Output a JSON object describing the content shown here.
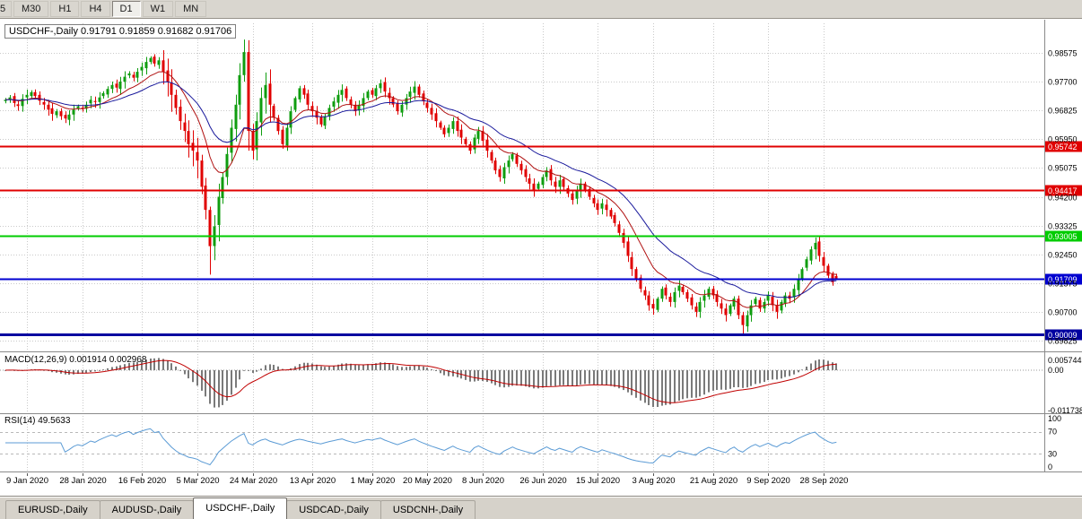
{
  "toolbar": {
    "items": [
      {
        "label": "5",
        "active": false
      },
      {
        "label": "M30",
        "active": false
      },
      {
        "label": "H1",
        "active": false
      },
      {
        "label": "H4",
        "active": false
      },
      {
        "label": "D1",
        "active": true
      },
      {
        "label": "W1",
        "active": false
      },
      {
        "label": "MN",
        "active": false
      }
    ]
  },
  "chart_title": "USDCHF-,Daily  0.91791 0.91859 0.91682 0.91706",
  "chart_data": {
    "type": "candlestick",
    "symbol": "USDCHF-",
    "timeframe": "Daily",
    "ohlc": {
      "open": "0.91791",
      "high": "0.91859",
      "low": "0.91682",
      "close": "0.91706"
    },
    "colors": {
      "up": "#0f9d0f",
      "down": "#e00000",
      "grid": "#c9c9c9",
      "ma_fast": "#b01010",
      "ma_slow": "#1a1a9c",
      "macd_hist": "#7a7a7a",
      "macd_signal": "#c00000",
      "rsi_line": "#5b9bd5"
    },
    "y_axis_labels": [
      "0.98575",
      "0.97700",
      "0.96825",
      "0.95950",
      "0.95075",
      "0.94200",
      "0.93325",
      "0.92450",
      "0.91575",
      "0.90700",
      "0.89825"
    ],
    "x_tick_labels": [
      "9 Jan 2020",
      "28 Jan 2020",
      "16 Feb 2020",
      "5 Mar 2020",
      "24 Mar 2020",
      "13 Apr 2020",
      "1 May 2020",
      "20 May 2020",
      "8 Jun 2020",
      "26 Jun 2020",
      "15 Jul 2020",
      "3 Aug 2020",
      "21 Aug 2020",
      "9 Sep 2020",
      "28 Sep 2020"
    ],
    "x_tick_bars": [
      5,
      18,
      32,
      45,
      58,
      72,
      86,
      99,
      112,
      126,
      139,
      152,
      166,
      179,
      192
    ],
    "hlines": [
      {
        "value": 0.95742,
        "label": "0.95742",
        "color": "#e00000",
        "width": 2
      },
      {
        "value": 0.94417,
        "label": "0.94417",
        "color": "#e00000",
        "width": 2
      },
      {
        "value": 0.93005,
        "label": "0.93005",
        "color": "#00cc00",
        "width": 2
      },
      {
        "value": 0.91709,
        "label": "0.91709",
        "color": "#0000d0",
        "width": 2
      },
      {
        "value": 0.90009,
        "label": "0.90009",
        "color": "#0000a0",
        "width": 3
      }
    ],
    "moving_averages": [
      {
        "period": 12,
        "color": "#b01010"
      },
      {
        "period": 26,
        "color": "#1a1a9c"
      }
    ],
    "candles": {
      "wick": 0.0015,
      "vol_zone": [
        37,
        62
      ],
      "vol_mult": 2.6,
      "closes": [
        0.9715,
        0.9722,
        0.9705,
        0.9696,
        0.9718,
        0.973,
        0.9738,
        0.9726,
        0.9712,
        0.97,
        0.9685,
        0.9672,
        0.968,
        0.9665,
        0.9658,
        0.967,
        0.9685,
        0.9695,
        0.9688,
        0.97,
        0.9715,
        0.9708,
        0.9722,
        0.9735,
        0.9748,
        0.976,
        0.9752,
        0.977,
        0.9785,
        0.9795,
        0.9782,
        0.98,
        0.9815,
        0.983,
        0.9842,
        0.9825,
        0.9835,
        0.98,
        0.977,
        0.973,
        0.969,
        0.965,
        0.962,
        0.958,
        0.956,
        0.953,
        0.945,
        0.938,
        0.927,
        0.933,
        0.942,
        0.948,
        0.955,
        0.963,
        0.97,
        0.979,
        0.986,
        0.962,
        0.956,
        0.965,
        0.972,
        0.976,
        0.97,
        0.966,
        0.962,
        0.958,
        0.963,
        0.968,
        0.972,
        0.975,
        0.973,
        0.97,
        0.968,
        0.966,
        0.964,
        0.9665,
        0.969,
        0.971,
        0.973,
        0.9745,
        0.972,
        0.97,
        0.968,
        0.97,
        0.972,
        0.974,
        0.973,
        0.975,
        0.9765,
        0.974,
        0.972,
        0.97,
        0.968,
        0.97,
        0.972,
        0.974,
        0.9755,
        0.973,
        0.971,
        0.969,
        0.967,
        0.965,
        0.963,
        0.961,
        0.963,
        0.965,
        0.962,
        0.96,
        0.958,
        0.956,
        0.96,
        0.962,
        0.959,
        0.956,
        0.953,
        0.95,
        0.948,
        0.951,
        0.953,
        0.955,
        0.952,
        0.95,
        0.948,
        0.946,
        0.944,
        0.946,
        0.948,
        0.95,
        0.947,
        0.945,
        0.947,
        0.945,
        0.943,
        0.941,
        0.944,
        0.946,
        0.944,
        0.942,
        0.94,
        0.938,
        0.94,
        0.938,
        0.936,
        0.934,
        0.931,
        0.928,
        0.924,
        0.92,
        0.917,
        0.914,
        0.912,
        0.909,
        0.908,
        0.911,
        0.914,
        0.912,
        0.91,
        0.913,
        0.915,
        0.913,
        0.911,
        0.909,
        0.907,
        0.91,
        0.912,
        0.914,
        0.912,
        0.91,
        0.908,
        0.906,
        0.909,
        0.911,
        0.906,
        0.903,
        0.906,
        0.909,
        0.911,
        0.908,
        0.91,
        0.912,
        0.909,
        0.907,
        0.91,
        0.912,
        0.911,
        0.914,
        0.917,
        0.92,
        0.923,
        0.926,
        0.928,
        0.924,
        0.921,
        0.918,
        0.916,
        0.91706
      ],
      "overrides": {
        "48": [
          0.938,
          0.939,
          0.9183,
          0.927
        ],
        "56": [
          0.979,
          0.9898,
          0.977,
          0.986
        ],
        "57": [
          0.986,
          0.9896,
          0.956,
          0.962
        ],
        "173": [
          0.906,
          0.907,
          0.8998,
          0.903
        ],
        "190": [
          0.926,
          0.9296,
          0.923,
          0.928
        ],
        "195": [
          0.91791,
          0.91859,
          0.91682,
          0.91706
        ]
      }
    },
    "indicators": {
      "macd": {
        "label": "MACD(12,26,9) 0.001914 0.002968",
        "params": [
          12,
          26,
          9
        ],
        "axis_labels": [
          "0.005744",
          "0.00",
          "-0.011738"
        ]
      },
      "rsi": {
        "label": "RSI(14) 49.5633",
        "period": 14,
        "value": 49.5633,
        "levels": [
          70,
          30
        ],
        "axis_labels": [
          "100",
          "70",
          "30",
          "0"
        ]
      }
    }
  },
  "tabs": {
    "items": [
      {
        "label": "EURUSD-,Daily",
        "active": false
      },
      {
        "label": "AUDUSD-,Daily",
        "active": false
      },
      {
        "label": "USDCHF-,Daily",
        "active": true
      },
      {
        "label": "USDCAD-,Daily",
        "active": false
      },
      {
        "label": "USDCNH-,Daily",
        "active": false
      }
    ]
  }
}
